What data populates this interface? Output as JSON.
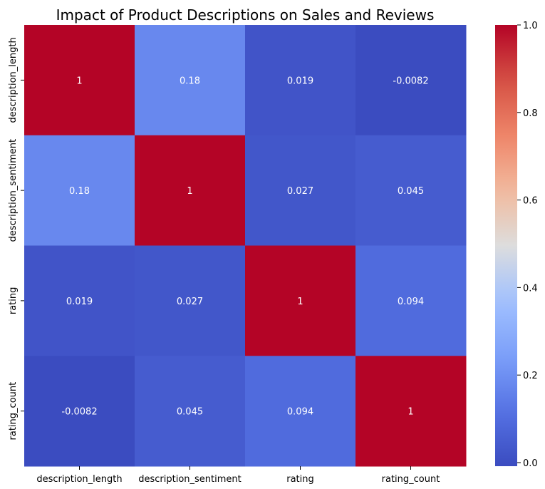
{
  "chart_data": {
    "type": "heatmap",
    "title": "Impact of Product Descriptions on Sales and Reviews",
    "x_labels": [
      "description_length",
      "description_sentiment",
      "rating",
      "rating_count"
    ],
    "y_labels": [
      "description_length",
      "description_sentiment",
      "rating",
      "rating_count"
    ],
    "values": [
      [
        1,
        0.18,
        0.019,
        -0.0082
      ],
      [
        0.18,
        1,
        0.027,
        0.045
      ],
      [
        0.019,
        0.027,
        1,
        0.094
      ],
      [
        -0.0082,
        0.045,
        0.094,
        1
      ]
    ],
    "annotations": [
      [
        "1",
        "0.18",
        "0.019",
        "-0.0082"
      ],
      [
        "0.18",
        "1",
        "0.027",
        "0.045"
      ],
      [
        "0.019",
        "0.027",
        "1",
        "0.094"
      ],
      [
        "-0.0082",
        "0.045",
        "0.094",
        "1"
      ]
    ],
    "colormap": "coolwarm",
    "colorbar": {
      "vmin": -0.0082,
      "vmax": 1.0,
      "ticks": [
        0.0,
        0.2,
        0.4,
        0.6,
        0.8,
        1.0
      ],
      "tick_labels": [
        "0.0",
        "0.2",
        "0.4",
        "0.6",
        "0.8",
        "1.0"
      ]
    }
  }
}
